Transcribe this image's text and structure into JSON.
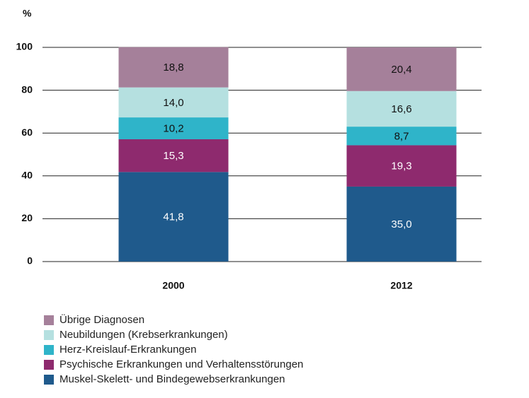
{
  "chart_data": {
    "type": "stacked_bar",
    "y_label": "%",
    "categories": [
      "2000",
      "2012"
    ],
    "ylim": [
      0,
      100
    ],
    "yticks": [
      0,
      20,
      40,
      60,
      80,
      100
    ],
    "grid": true,
    "series": [
      {
        "name": "Muskel-Skelett- und Bindegewebserkrankungen",
        "color": "#1f5a8c",
        "values": [
          41.8,
          35.0
        ],
        "value_labels": [
          "41,8",
          "35,0"
        ]
      },
      {
        "name": "Psychische Erkrankungen und Verhaltensstörungen",
        "color": "#8e2a6e",
        "values": [
          15.3,
          19.3
        ],
        "value_labels": [
          "15,3",
          "19,3"
        ]
      },
      {
        "name": "Herz-Kreislauf-Erkrankungen",
        "color": "#2fb4c9",
        "values": [
          10.2,
          8.7
        ],
        "value_labels": [
          "10,2",
          "8,7"
        ]
      },
      {
        "name": "Neubildungen (Krebserkrankungen)",
        "color": "#b5e0e0",
        "values": [
          14.0,
          16.6
        ],
        "value_labels": [
          "14,0",
          "16,6"
        ]
      },
      {
        "name": "Übrige Diagnosen",
        "color": "#a5809a",
        "values": [
          18.8,
          20.4
        ],
        "value_labels": [
          "18,8",
          "20,4"
        ]
      }
    ]
  }
}
